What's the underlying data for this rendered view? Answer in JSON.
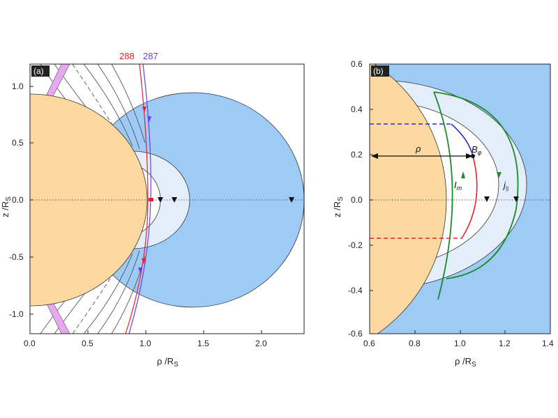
{
  "panel_a": {
    "label": "(a)",
    "x_label": "ρ /R",
    "x_label_sub": "S",
    "y_label": "z /R",
    "y_label_sub": "S",
    "x_ticks": [
      "0.0",
      "0.5",
      "1.0",
      "1.5",
      "2.0"
    ],
    "y_ticks": [
      "1.0",
      "0.5",
      "0.0",
      "-0.5",
      "-1.0"
    ],
    "trajectory_labels": [
      {
        "text": "288",
        "color": "#e8202a"
      },
      {
        "text": "287",
        "color": "#6a3cf0"
      }
    ]
  },
  "panel_b": {
    "label": "(b)",
    "x_label": "ρ /R",
    "x_label_sub": "S",
    "y_label": "z /R",
    "y_label_sub": "S",
    "x_ticks": [
      "0.6",
      "0.8",
      "1.0",
      "1.2",
      "1.4"
    ],
    "y_ticks": [
      "0.6",
      "0.4",
      "0.2",
      "0.0",
      "-0.2",
      "-0.4",
      "-0.6"
    ],
    "annotations": {
      "rho": "ρ",
      "b_field": "B",
      "b_sub": "φ",
      "current_m": "I",
      "current_m_sub": "m",
      "current_par": "j",
      "current_par_sub": "||"
    }
  },
  "colors": {
    "planet": "#fcd9a0",
    "field_region": "#9ecbf5",
    "inner_region": "#e4eefb",
    "ring": "#e6a8f0",
    "red": "#e8202a",
    "purple": "#6a3cf0",
    "blue": "#2030c8",
    "green": "#1a8a2a"
  }
}
